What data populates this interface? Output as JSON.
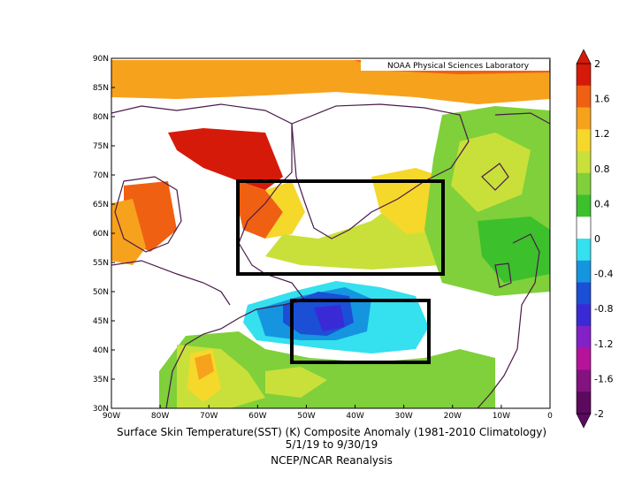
{
  "map": {
    "credit": "NOAA Physical Sciences Laboratory",
    "lat_labels": [
      "90N",
      "85N",
      "80N",
      "75N",
      "70N",
      "65N",
      "60N",
      "55N",
      "50N",
      "45N",
      "40N",
      "35N",
      "30N"
    ],
    "lon_labels": [
      "90W",
      "80W",
      "70W",
      "60W",
      "50W",
      "40W",
      "30W",
      "20W",
      "10W",
      "0"
    ],
    "extent": {
      "lon": [
        -90,
        0
      ],
      "lat": [
        30,
        90
      ]
    },
    "boxes": [
      {
        "name": "north-box",
        "lon": [
          -64,
          -22
        ],
        "lat": [
          53,
          69
        ]
      },
      {
        "name": "south-box",
        "lon": [
          -53,
          -25
        ],
        "lat": [
          37.5,
          48.5
        ]
      }
    ],
    "colors": {
      "coast": "#4a1a4a",
      "box": "#000000"
    }
  },
  "colorbar": {
    "labels": [
      "2",
      "1.6",
      "1.2",
      "0.8",
      "0.4",
      "0",
      "-0.4",
      "-0.8",
      "-1.2",
      "-1.6",
      "-2"
    ],
    "colors": [
      "#d61a0a",
      "#f06012",
      "#f7a21c",
      "#f5d82a",
      "#c9e03a",
      "#7fd03a",
      "#3cc02c",
      "#ffffff",
      "#35e0ef",
      "#1595e0",
      "#1a4fd6",
      "#3a2ad6",
      "#8420c8",
      "#b6139a",
      "#84127f",
      "#5c0a5e"
    ]
  },
  "caption": {
    "title": "Surface Skin Temperature(SST) (K) Composite Anomaly (1981-2010 Climatology)",
    "dates": "5/1/19  to 9/30/19",
    "source": "NCEP/NCAR Reanalysis"
  }
}
